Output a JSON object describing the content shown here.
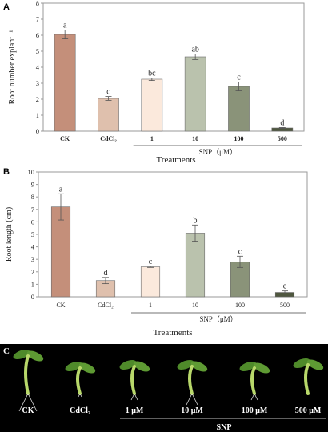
{
  "charts": {
    "A": {
      "panel": "A",
      "ylabel": "Root number explant⁻¹",
      "xlabel": "Treatments",
      "group_label": "SNP（μM）"
    },
    "B": {
      "panel": "B",
      "ylabel": "Root length (cm)",
      "xlabel": "Treatments",
      "group_label": "SNP（μM）"
    }
  },
  "chart_data": [
    {
      "type": "bar",
      "categories": [
        "CK",
        "CdCl₂",
        "1",
        "10",
        "100",
        "500"
      ],
      "values": [
        6.05,
        2.05,
        3.25,
        4.65,
        2.8,
        0.2
      ],
      "errors": [
        0.28,
        0.12,
        0.08,
        0.17,
        0.28,
        0.03
      ],
      "letters": [
        "a",
        "c",
        "bc",
        "ab",
        "c",
        "d"
      ],
      "ylim": [
        0,
        8
      ],
      "yticks": [
        0,
        1,
        2,
        3,
        4,
        5,
        6,
        7,
        8
      ],
      "xlabel": "Treatments",
      "ylabel": "Root number explant⁻¹",
      "grid": false,
      "legend": "none"
    },
    {
      "type": "bar",
      "categories": [
        "CK",
        "CdCl₂",
        "1",
        "10",
        "100",
        "500"
      ],
      "values": [
        7.2,
        1.3,
        2.4,
        5.1,
        2.8,
        0.35
      ],
      "errors": [
        1.05,
        0.25,
        0.05,
        0.65,
        0.45,
        0.12
      ],
      "letters": [
        "a",
        "d",
        "c",
        "b",
        "c",
        "e"
      ],
      "ylim": [
        0,
        10
      ],
      "yticks": [
        0,
        1,
        2,
        3,
        4,
        5,
        6,
        7,
        8,
        9,
        10
      ],
      "xlabel": "Treatments",
      "ylabel": "Root length (cm)",
      "grid": false,
      "legend": "none"
    }
  ],
  "colors": {
    "bars": [
      "#c48f7a",
      "#dfc0ad",
      "#fbe9dc",
      "#bac2ad",
      "#8a9379",
      "#4f573f"
    ],
    "bar_stroke": "#6b6b6b",
    "axis": "#9a9a9a",
    "error": "#555555"
  },
  "photo": {
    "panel": "C",
    "labels": [
      "CK",
      "CdCl₂",
      "1 μM",
      "10 μM",
      "100 μM",
      "500 μM"
    ],
    "group_label": "SNP"
  }
}
